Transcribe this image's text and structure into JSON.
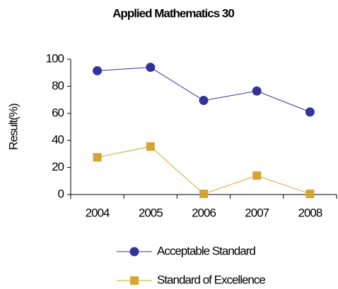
{
  "chart_data": {
    "type": "line",
    "title": "Applied Mathematics 30",
    "y_label": "Result(%)",
    "categories": [
      "2004",
      "2005",
      "2006",
      "2007",
      "2008"
    ],
    "series": [
      {
        "name": "Acceptable Standard",
        "color": "#333399",
        "marker": "circle",
        "values": [
          91.5,
          94,
          69.5,
          76.5,
          61
        ]
      },
      {
        "name": "Standard of Excellence",
        "color": "#d6a531",
        "marker": "square",
        "values": [
          27.5,
          35.5,
          0.5,
          14,
          0.5
        ]
      }
    ],
    "ylim": [
      0,
      100
    ],
    "yticks": [
      0,
      20,
      40,
      60,
      80,
      100
    ],
    "grid": false
  }
}
